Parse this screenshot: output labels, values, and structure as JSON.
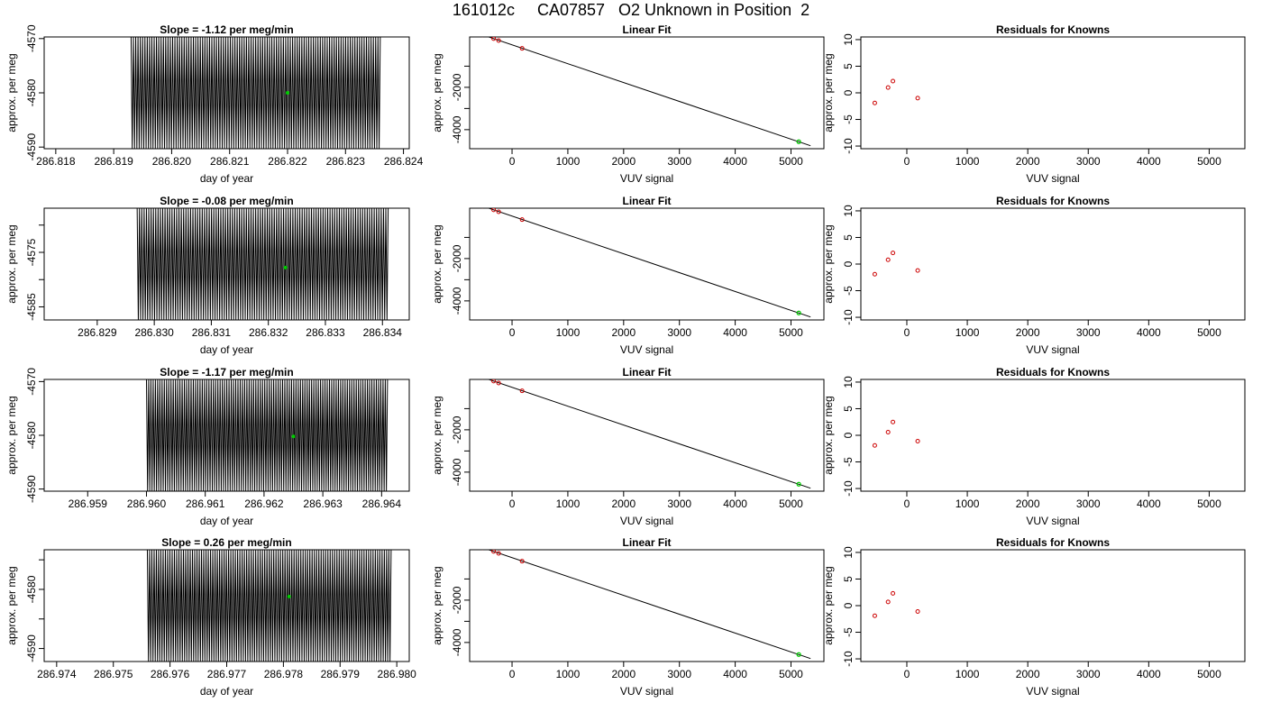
{
  "page": {
    "title": "161012c     CA07857   O2 Unknown in Position  2"
  },
  "chart_data": [
    {
      "type": "line",
      "row": 1,
      "col": 1,
      "title": "Slope =  -1.12  per meg/min",
      "xlabel": "day of year",
      "ylabel": "approx. per meg",
      "xlim": [
        286.8178,
        286.8241
      ],
      "ylim": [
        -4590.3,
        -4569.7
      ],
      "xticks": [
        286.818,
        286.819,
        286.82,
        286.821,
        286.822,
        286.823,
        286.824
      ],
      "xtick_labels": [
        "286.818",
        "286.819",
        "286.820",
        "286.821",
        "286.822",
        "286.823",
        "286.824"
      ],
      "yticks": [
        -4590,
        -4580,
        -4570
      ],
      "ytick_labels": [
        "-4590",
        "-4580",
        "-4570"
      ],
      "series": [
        {
          "x_start": 286.8193,
          "x_end": 286.8236,
          "y_min": -4590.3,
          "y_max": -4569.7,
          "cycles": 108,
          "color": "#000000"
        }
      ],
      "marker": {
        "x": 286.822,
        "y": -4580,
        "color": "#00cc00"
      }
    },
    {
      "type": "scatter",
      "row": 1,
      "col": 2,
      "title": "Linear Fit",
      "xlabel": "VUV signal",
      "ylabel": "approx. per meg",
      "xlim": [
        -760,
        5590
      ],
      "ylim": [
        -4900,
        380
      ],
      "xticks": [
        0,
        1000,
        2000,
        3000,
        4000,
        5000
      ],
      "xtick_labels": [
        "0",
        "1000",
        "2000",
        "3000",
        "4000",
        "5000"
      ],
      "yticks": [
        -4000,
        -3000,
        -2000,
        -1000
      ],
      "ytick_labels": [
        "-4000",
        "",
        "-2000",
        ""
      ],
      "points": [
        {
          "x": -530,
          "y": 480
        },
        {
          "x": -330,
          "y": 300
        },
        {
          "x": -240,
          "y": 210
        },
        {
          "x": 180,
          "y": -160
        }
      ],
      "unknown_point": {
        "x": 5140,
        "y": -4570
      },
      "fit_line": {
        "x": [
          -530,
          5350
        ],
        "y": [
          480,
          -4760
        ]
      },
      "point_color": "#cc0000",
      "unknown_color": "#00cc00"
    },
    {
      "type": "scatter",
      "row": 1,
      "col": 3,
      "title": "Residuals for Knowns",
      "xlabel": "VUV signal",
      "ylabel": "approx. per meg",
      "xlim": [
        -760,
        5590
      ],
      "ylim": [
        -10.5,
        10.5
      ],
      "xticks": [
        0,
        1000,
        2000,
        3000,
        4000,
        5000
      ],
      "xtick_labels": [
        "0",
        "1000",
        "2000",
        "3000",
        "4000",
        "5000"
      ],
      "yticks": [
        -10,
        -5,
        0,
        5,
        10
      ],
      "ytick_labels": [
        "-10",
        "-5",
        "0",
        "5",
        "10"
      ],
      "points": [
        {
          "x": -530,
          "y": -1.9
        },
        {
          "x": -310,
          "y": 1.0
        },
        {
          "x": -230,
          "y": 2.2
        },
        {
          "x": 180,
          "y": -1.0
        }
      ],
      "point_color": "#cc0000"
    },
    {
      "type": "line",
      "row": 2,
      "col": 1,
      "title": "Slope =  -0.08  per meg/min",
      "xlabel": "day of year",
      "ylabel": "approx. per meg",
      "xlim": [
        286.82807,
        286.83447
      ],
      "ylim": [
        -4587.4,
        -4566.9
      ],
      "xticks": [
        286.829,
        286.83,
        286.831,
        286.832,
        286.833,
        286.834
      ],
      "xtick_labels": [
        "286.829",
        "286.830",
        "286.831",
        "286.832",
        "286.833",
        "286.834"
      ],
      "yticks": [
        -4585,
        -4580,
        -4575,
        -4570
      ],
      "ytick_labels": [
        "-4585",
        "",
        "-4575",
        ""
      ],
      "series": [
        {
          "x_start": 286.8297,
          "x_end": 286.8341,
          "y_min": -4587.4,
          "y_max": -4566.9,
          "cycles": 108,
          "color": "#000000"
        }
      ],
      "marker": {
        "x": 286.8323,
        "y": -4577.8,
        "color": "#00cc00"
      }
    },
    {
      "type": "scatter",
      "row": 2,
      "col": 2,
      "title": "Linear Fit",
      "xlabel": "VUV signal",
      "ylabel": "approx. per meg",
      "xlim": [
        -760,
        5590
      ],
      "ylim": [
        -4900,
        380
      ],
      "xticks": [
        0,
        1000,
        2000,
        3000,
        4000,
        5000
      ],
      "xtick_labels": [
        "0",
        "1000",
        "2000",
        "3000",
        "4000",
        "5000"
      ],
      "yticks": [
        -4000,
        -3000,
        -2000,
        -1000
      ],
      "ytick_labels": [
        "-4000",
        "",
        "-2000",
        ""
      ],
      "points": [
        {
          "x": -530,
          "y": 480
        },
        {
          "x": -330,
          "y": 300
        },
        {
          "x": -240,
          "y": 210
        },
        {
          "x": 180,
          "y": -160
        }
      ],
      "unknown_point": {
        "x": 5140,
        "y": -4570
      },
      "fit_line": {
        "x": [
          -530,
          5350
        ],
        "y": [
          480,
          -4760
        ]
      },
      "point_color": "#cc0000",
      "unknown_color": "#00cc00"
    },
    {
      "type": "scatter",
      "row": 2,
      "col": 3,
      "title": "Residuals for Knowns",
      "xlabel": "VUV signal",
      "ylabel": "approx. per meg",
      "xlim": [
        -760,
        5590
      ],
      "ylim": [
        -10.5,
        10.5
      ],
      "xticks": [
        0,
        1000,
        2000,
        3000,
        4000,
        5000
      ],
      "xtick_labels": [
        "0",
        "1000",
        "2000",
        "3000",
        "4000",
        "5000"
      ],
      "yticks": [
        -10,
        -5,
        0,
        5,
        10
      ],
      "ytick_labels": [
        "-10",
        "-5",
        "0",
        "5",
        "10"
      ],
      "points": [
        {
          "x": -530,
          "y": -1.9
        },
        {
          "x": -310,
          "y": 0.8
        },
        {
          "x": -230,
          "y": 2.1
        },
        {
          "x": 180,
          "y": -1.2
        }
      ],
      "point_color": "#cc0000"
    },
    {
      "type": "line",
      "row": 3,
      "col": 1,
      "title": "Slope =  -1.17  per meg/min",
      "xlabel": "day of year",
      "ylabel": "approx. per meg",
      "xlim": [
        286.95826,
        286.96447
      ],
      "ylim": [
        -4590.4,
        -4569.6
      ],
      "xticks": [
        286.959,
        286.96,
        286.961,
        286.962,
        286.963,
        286.964
      ],
      "xtick_labels": [
        "286.959",
        "286.960",
        "286.961",
        "286.962",
        "286.963",
        "286.964"
      ],
      "yticks": [
        -4590,
        -4580,
        -4570
      ],
      "ytick_labels": [
        "-4590",
        "-4580",
        "-4570"
      ],
      "series": [
        {
          "x_start": 286.96,
          "x_end": 286.9641,
          "y_min": -4590.4,
          "y_max": -4569.6,
          "cycles": 108,
          "color": "#000000"
        }
      ],
      "marker": {
        "x": 286.9625,
        "y": -4580.2,
        "color": "#00cc00"
      }
    },
    {
      "type": "scatter",
      "row": 3,
      "col": 2,
      "title": "Linear Fit",
      "xlabel": "VUV signal",
      "ylabel": "approx. per meg",
      "xlim": [
        -760,
        5590
      ],
      "ylim": [
        -4900,
        380
      ],
      "xticks": [
        0,
        1000,
        2000,
        3000,
        4000,
        5000
      ],
      "xtick_labels": [
        "0",
        "1000",
        "2000",
        "3000",
        "4000",
        "5000"
      ],
      "yticks": [
        -4000,
        -3000,
        -2000,
        -1000
      ],
      "ytick_labels": [
        "-4000",
        "",
        "-2000",
        ""
      ],
      "points": [
        {
          "x": -530,
          "y": 480
        },
        {
          "x": -330,
          "y": 300
        },
        {
          "x": -240,
          "y": 210
        },
        {
          "x": 180,
          "y": -160
        }
      ],
      "unknown_point": {
        "x": 5140,
        "y": -4570
      },
      "fit_line": {
        "x": [
          -530,
          5350
        ],
        "y": [
          480,
          -4760
        ]
      },
      "point_color": "#cc0000",
      "unknown_color": "#00cc00"
    },
    {
      "type": "scatter",
      "row": 3,
      "col": 3,
      "title": "Residuals for Knowns",
      "xlabel": "VUV signal",
      "ylabel": "approx. per meg",
      "xlim": [
        -760,
        5590
      ],
      "ylim": [
        -10.5,
        10.5
      ],
      "xticks": [
        0,
        1000,
        2000,
        3000,
        4000,
        5000
      ],
      "xtick_labels": [
        "0",
        "1000",
        "2000",
        "3000",
        "4000",
        "5000"
      ],
      "yticks": [
        -10,
        -5,
        0,
        5,
        10
      ],
      "ytick_labels": [
        "-10",
        "-5",
        "0",
        "5",
        "10"
      ],
      "points": [
        {
          "x": -530,
          "y": -1.9
        },
        {
          "x": -310,
          "y": 0.6
        },
        {
          "x": -230,
          "y": 2.5
        },
        {
          "x": 180,
          "y": -1.1
        }
      ],
      "point_color": "#cc0000"
    },
    {
      "type": "line",
      "row": 4,
      "col": 1,
      "title": "Slope =  0.26  per meg/min",
      "xlabel": "day of year",
      "ylabel": "approx. per meg",
      "xlim": [
        286.97378,
        286.98022
      ],
      "ylim": [
        -4592.2,
        -4573.3
      ],
      "xticks": [
        286.974,
        286.975,
        286.976,
        286.977,
        286.978,
        286.979,
        286.98
      ],
      "xtick_labels": [
        "286.974",
        "286.975",
        "286.976",
        "286.977",
        "286.978",
        "286.979",
        "286.980"
      ],
      "yticks": [
        -4590,
        -4585,
        -4580,
        -4575
      ],
      "ytick_labels": [
        "-4590",
        "",
        "-4580",
        ""
      ],
      "series": [
        {
          "x_start": 286.9756,
          "x_end": 286.9799,
          "y_min": -4592.2,
          "y_max": -4573.3,
          "cycles": 108,
          "color": "#000000"
        }
      ],
      "marker": {
        "x": 286.9781,
        "y": -4581.2,
        "color": "#00cc00"
      }
    },
    {
      "type": "scatter",
      "row": 4,
      "col": 2,
      "title": "Linear Fit",
      "xlabel": "VUV signal",
      "ylabel": "approx. per meg",
      "xlim": [
        -760,
        5590
      ],
      "ylim": [
        -4900,
        380
      ],
      "xticks": [
        0,
        1000,
        2000,
        3000,
        4000,
        5000
      ],
      "xtick_labels": [
        "0",
        "1000",
        "2000",
        "3000",
        "4000",
        "5000"
      ],
      "yticks": [
        -4000,
        -3000,
        -2000,
        -1000
      ],
      "ytick_labels": [
        "-4000",
        "",
        "-2000",
        ""
      ],
      "points": [
        {
          "x": -530,
          "y": 480
        },
        {
          "x": -330,
          "y": 300
        },
        {
          "x": -240,
          "y": 210
        },
        {
          "x": 180,
          "y": -160
        }
      ],
      "unknown_point": {
        "x": 5140,
        "y": -4570
      },
      "fit_line": {
        "x": [
          -530,
          5350
        ],
        "y": [
          480,
          -4760
        ]
      },
      "point_color": "#cc0000",
      "unknown_color": "#00cc00"
    },
    {
      "type": "scatter",
      "row": 4,
      "col": 3,
      "title": "Residuals for Knowns",
      "xlabel": "VUV signal",
      "ylabel": "approx. per meg",
      "xlim": [
        -760,
        5590
      ],
      "ylim": [
        -10.5,
        10.5
      ],
      "xticks": [
        0,
        1000,
        2000,
        3000,
        4000,
        5000
      ],
      "xtick_labels": [
        "0",
        "1000",
        "2000",
        "3000",
        "4000",
        "5000"
      ],
      "yticks": [
        -10,
        -5,
        0,
        5,
        10
      ],
      "ytick_labels": [
        "-10",
        "-5",
        "0",
        "5",
        "10"
      ],
      "points": [
        {
          "x": -530,
          "y": -1.9
        },
        {
          "x": -310,
          "y": 0.7
        },
        {
          "x": -230,
          "y": 2.3
        },
        {
          "x": 180,
          "y": -1.1
        }
      ],
      "point_color": "#cc0000"
    }
  ]
}
